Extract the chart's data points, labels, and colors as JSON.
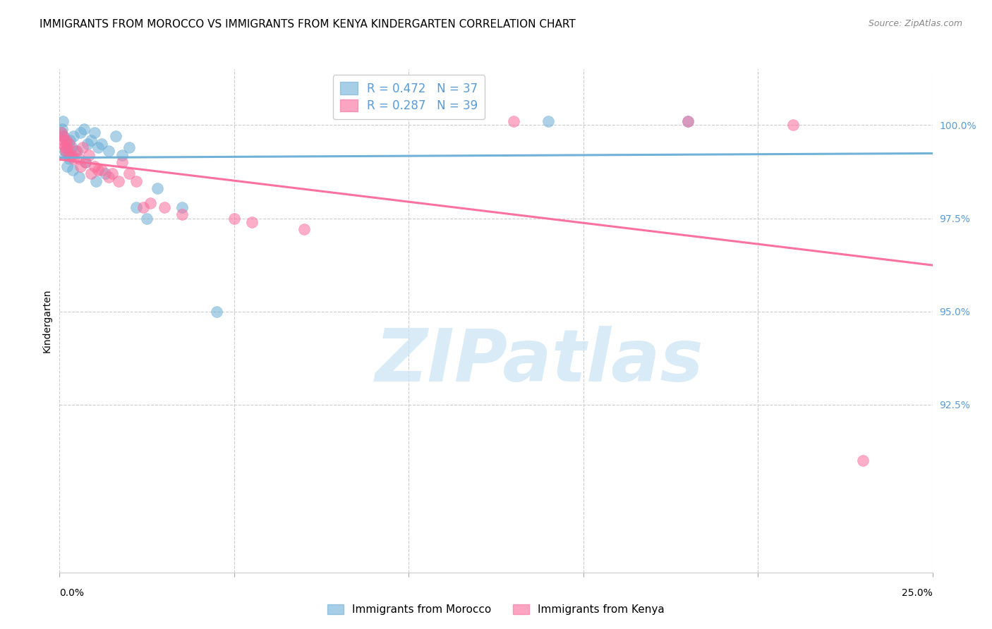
{
  "title": "IMMIGRANTS FROM MOROCCO VS IMMIGRANTS FROM KENYA KINDERGARTEN CORRELATION CHART",
  "source": "Source: ZipAtlas.com",
  "xlabel_bottom_left": "0.0%",
  "xlabel_bottom_right": "25.0%",
  "ylabel": "Kindergarten",
  "ytick_labels": [
    "92.5%",
    "95.0%",
    "97.5%",
    "100.0%"
  ],
  "ytick_values": [
    92.5,
    95.0,
    97.5,
    100.0
  ],
  "xlim": [
    0.0,
    25.0
  ],
  "ylim": [
    88.0,
    101.5
  ],
  "morocco_color": "#6baed6",
  "kenya_color": "#fb6a9a",
  "morocco_R": 0.472,
  "morocco_N": 37,
  "kenya_R": 0.287,
  "kenya_N": 39,
  "morocco_scatter_x": [
    0.1,
    0.15,
    0.2,
    0.25,
    0.3,
    0.35,
    0.4,
    0.5,
    0.6,
    0.7,
    0.8,
    0.9,
    1.0,
    1.1,
    1.2,
    1.4,
    1.6,
    1.8,
    2.0,
    2.2,
    2.5,
    0.05,
    0.08,
    0.12,
    0.18,
    0.22,
    0.28,
    0.38,
    0.55,
    0.75,
    1.05,
    1.3,
    2.8,
    3.5,
    4.5,
    14.0,
    18.0
  ],
  "morocco_scatter_y": [
    100.1,
    99.3,
    99.5,
    99.2,
    99.6,
    99.4,
    99.7,
    99.3,
    99.8,
    99.9,
    99.5,
    99.6,
    99.8,
    99.4,
    99.5,
    99.3,
    99.7,
    99.2,
    99.4,
    97.8,
    97.5,
    99.8,
    99.9,
    99.7,
    99.2,
    98.9,
    99.1,
    98.8,
    98.6,
    99.0,
    98.5,
    98.7,
    98.3,
    97.8,
    95.0,
    100.1,
    100.1
  ],
  "kenya_scatter_x": [
    0.05,
    0.08,
    0.12,
    0.18,
    0.22,
    0.28,
    0.35,
    0.45,
    0.55,
    0.65,
    0.75,
    0.85,
    1.0,
    1.2,
    1.5,
    1.8,
    2.2,
    2.6,
    3.0,
    0.1,
    0.15,
    0.2,
    0.3,
    0.4,
    0.6,
    0.9,
    1.1,
    1.4,
    1.7,
    2.0,
    2.4,
    3.5,
    5.0,
    5.5,
    7.0,
    13.0,
    18.0,
    21.0,
    23.0
  ],
  "kenya_scatter_y": [
    99.8,
    99.5,
    99.6,
    99.3,
    99.4,
    99.5,
    99.2,
    99.3,
    99.1,
    99.4,
    99.0,
    99.2,
    98.9,
    98.8,
    98.7,
    99.0,
    98.5,
    97.9,
    97.8,
    99.7,
    99.4,
    99.6,
    99.2,
    99.1,
    98.9,
    98.7,
    98.8,
    98.6,
    98.5,
    98.7,
    97.8,
    97.6,
    97.5,
    97.4,
    97.2,
    100.1,
    100.1,
    100.0,
    91.0
  ],
  "legend_R_morocco": "R = 0.472",
  "legend_N_morocco": "N = 37",
  "legend_R_kenya": "R = 0.287",
  "legend_N_kenya": "N = 39",
  "watermark_text": "ZIPatlas",
  "background_color": "#ffffff",
  "grid_color": "#cccccc",
  "title_fontsize": 11,
  "axis_label_fontsize": 10,
  "tick_fontsize": 10,
  "legend_fontsize": 12,
  "source_fontsize": 9
}
